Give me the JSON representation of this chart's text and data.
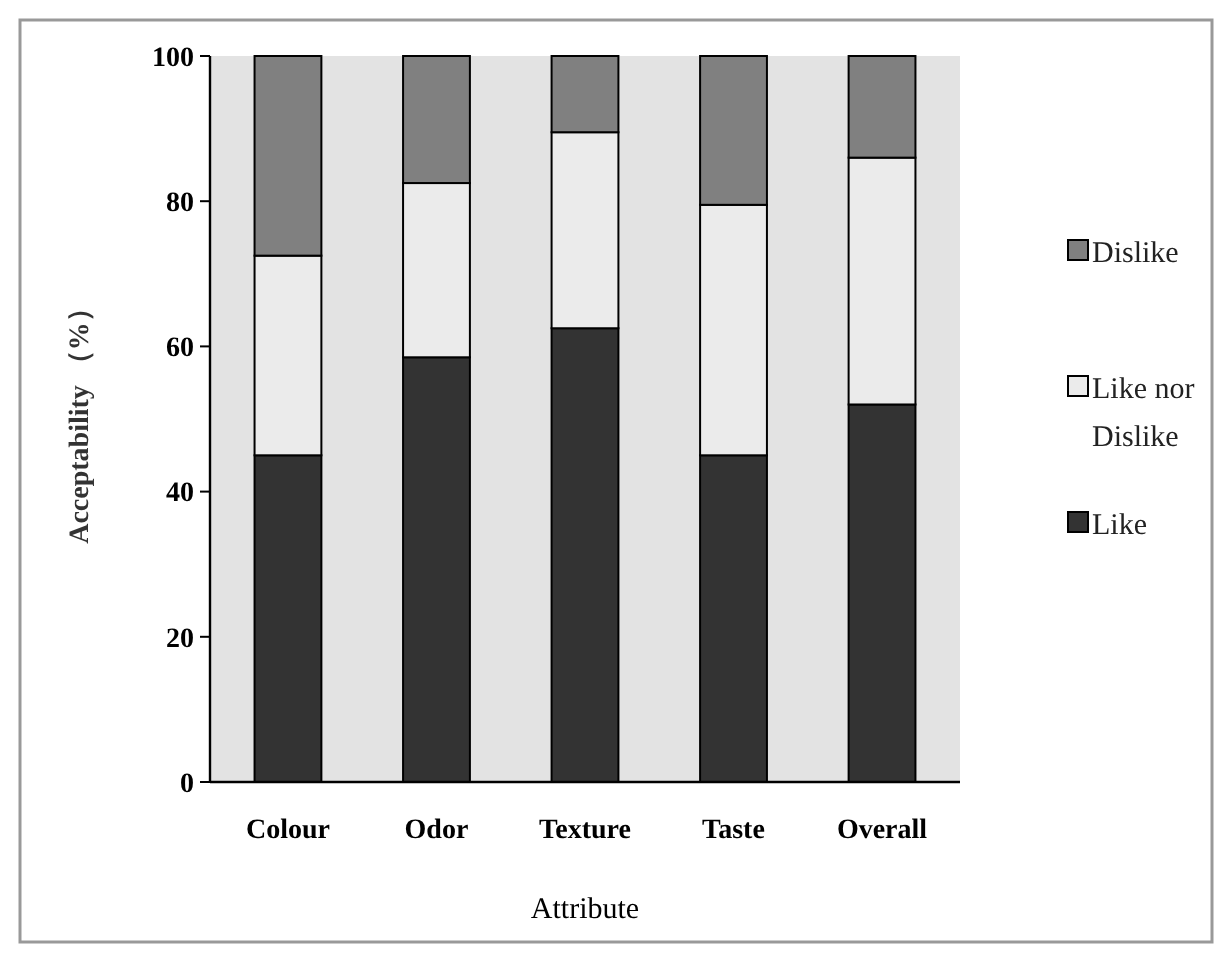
{
  "chart_data": {
    "type": "bar",
    "stacked": true,
    "xlabel": "Attribute",
    "ylabel": "Acceptability （%）",
    "categories": [
      "Colour",
      "Odor",
      "Texture",
      "Taste",
      "Overall"
    ],
    "series": [
      {
        "name": "Like",
        "color": "#333333",
        "values": [
          45,
          58.5,
          62.5,
          45,
          52
        ]
      },
      {
        "name": "Like nor Dislike",
        "color": "#ebebeb",
        "values": [
          27.5,
          24,
          27,
          34.5,
          34
        ]
      },
      {
        "name": "Dislike",
        "color": "#808080",
        "values": [
          27.5,
          17.5,
          10.5,
          20.5,
          14
        ]
      }
    ],
    "ylim": [
      0,
      100
    ],
    "yticks": [
      0,
      20,
      40,
      60,
      80,
      100
    ],
    "grid": false,
    "legend": "right"
  }
}
